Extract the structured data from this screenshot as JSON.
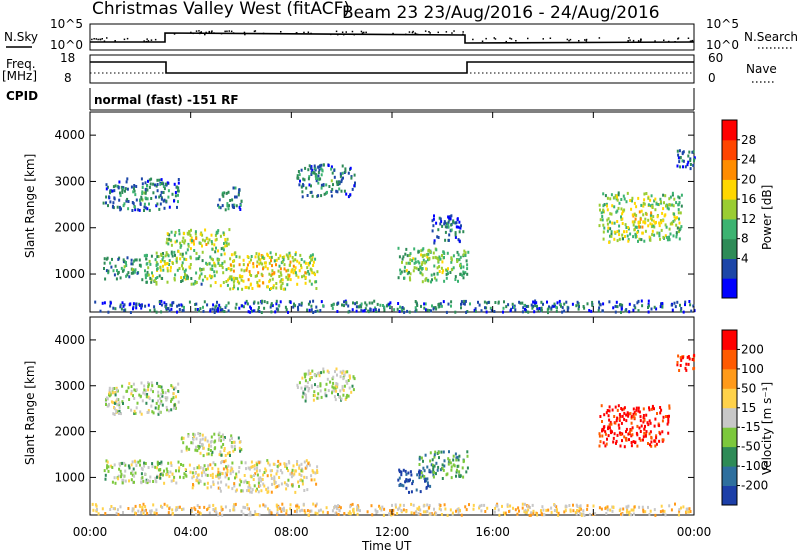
{
  "header": {
    "station": "Christmas Valley West (fitACF)",
    "beam_info": "Beam 23 23/Aug/2016 - 24/Aug/2016"
  },
  "top_panels": {
    "nsky_label": "N.Sky",
    "nsearch_label": "N.Search",
    "nsky_ticks": [
      "10^5",
      "10^0"
    ],
    "nsearch_ticks": [
      "10^5",
      "10^0"
    ],
    "freq_label_1": "Freq.",
    "freq_label_2": "[MHz]",
    "freq_ticks": [
      "18",
      "8"
    ],
    "nave_label": "Nave",
    "nave_ticks": [
      "60",
      "0"
    ],
    "cpid_label": "CPID",
    "cpid_text": "normal (fast) -151 RF"
  },
  "chart_data": [
    {
      "type": "heatmap",
      "title": "",
      "xlabel": "",
      "ylabel": "Slant Range [km]",
      "yticks": [
        1000,
        2000,
        3000,
        4000
      ],
      "ylim": [
        180,
        4500
      ],
      "x_range_hours": [
        0,
        24
      ],
      "colorbar": {
        "label": "Power [dB]",
        "ticks": [
          "28",
          "24",
          "20",
          "16",
          "12",
          "8",
          "4"
        ],
        "colors": [
          "#0000ff",
          "#1c46a8",
          "#2e8b57",
          "#3cb371",
          "#9acd32",
          "#ffd700",
          "#ff8c00",
          "#ff4500",
          "#ff0000"
        ]
      },
      "regions": [
        {
          "t0": 0.5,
          "t1": 3.5,
          "r0": 2400,
          "r1": 3100,
          "level": 0.35
        },
        {
          "t0": 0.5,
          "t1": 2.0,
          "r0": 900,
          "r1": 1400,
          "level": 0.4
        },
        {
          "t0": 2.0,
          "t1": 4.5,
          "r0": 800,
          "r1": 1500,
          "level": 0.55
        },
        {
          "t0": 3.0,
          "t1": 5.5,
          "r0": 1500,
          "r1": 2000,
          "level": 0.6
        },
        {
          "t0": 4.5,
          "t1": 9.0,
          "r0": 700,
          "r1": 1500,
          "level": 0.65
        },
        {
          "t0": 5.0,
          "t1": 6.0,
          "r0": 2400,
          "r1": 2900,
          "level": 0.4
        },
        {
          "t0": 8.2,
          "t1": 10.5,
          "r0": 2700,
          "r1": 3400,
          "level": 0.35
        },
        {
          "t0": 12.2,
          "t1": 15.0,
          "r0": 850,
          "r1": 1600,
          "level": 0.55
        },
        {
          "t0": 13.5,
          "t1": 14.8,
          "r0": 1700,
          "r1": 2300,
          "level": 0.3
        },
        {
          "t0": 20.2,
          "t1": 23.5,
          "r0": 1700,
          "r1": 2800,
          "level": 0.6
        },
        {
          "t0": 23.3,
          "t1": 24.0,
          "r0": 3300,
          "r1": 3700,
          "level": 0.3
        },
        {
          "t0": 0.0,
          "t1": 24.0,
          "r0": 200,
          "r1": 450,
          "level": 0.3
        }
      ]
    },
    {
      "type": "heatmap",
      "title": "",
      "xlabel": "Time UT",
      "ylabel": "Slant Range [km]",
      "yticks": [
        1000,
        2000,
        3000,
        4000
      ],
      "ylim": [
        180,
        4500
      ],
      "xtick_labels": [
        "00:00",
        "04:00",
        "08:00",
        "12:00",
        "16:00",
        "20:00",
        "00:00"
      ],
      "x_range_hours": [
        0,
        24
      ],
      "colorbar": {
        "label": "Velocity [m s⁻¹]",
        "ticks": [
          "200",
          "100",
          "50",
          "15",
          "-15",
          "-50",
          "-100",
          "-200"
        ],
        "colors": [
          "#1c3fa8",
          "#2e6f9e",
          "#2e8b57",
          "#7cc83c",
          "#c8c8c8",
          "#ffd24a",
          "#ff9a1a",
          "#ff5a00",
          "#ff0000"
        ]
      },
      "regions": [
        {
          "t0": 0.5,
          "t1": 3.5,
          "r0": 2400,
          "r1": 3100,
          "level": 0.45
        },
        {
          "t0": 0.5,
          "t1": 4.0,
          "r0": 900,
          "r1": 1400,
          "level": 0.45
        },
        {
          "t0": 3.5,
          "t1": 6.0,
          "r0": 1500,
          "r1": 2000,
          "level": 0.45
        },
        {
          "t0": 4.0,
          "t1": 9.0,
          "r0": 700,
          "r1": 1400,
          "level": 0.55
        },
        {
          "t0": 8.2,
          "t1": 10.5,
          "r0": 2700,
          "r1": 3400,
          "level": 0.45
        },
        {
          "t0": 12.2,
          "t1": 13.5,
          "r0": 700,
          "r1": 1200,
          "level": 0.05
        },
        {
          "t0": 13.0,
          "t1": 15.0,
          "r0": 1000,
          "r1": 1600,
          "level": 0.3
        },
        {
          "t0": 20.2,
          "t1": 23.0,
          "r0": 1700,
          "r1": 2600,
          "level": 0.95
        },
        {
          "t0": 23.3,
          "t1": 24.0,
          "r0": 3300,
          "r1": 3700,
          "level": 0.9
        },
        {
          "t0": 0.0,
          "t1": 24.0,
          "r0": 200,
          "r1": 450,
          "level": 0.6
        }
      ]
    }
  ]
}
